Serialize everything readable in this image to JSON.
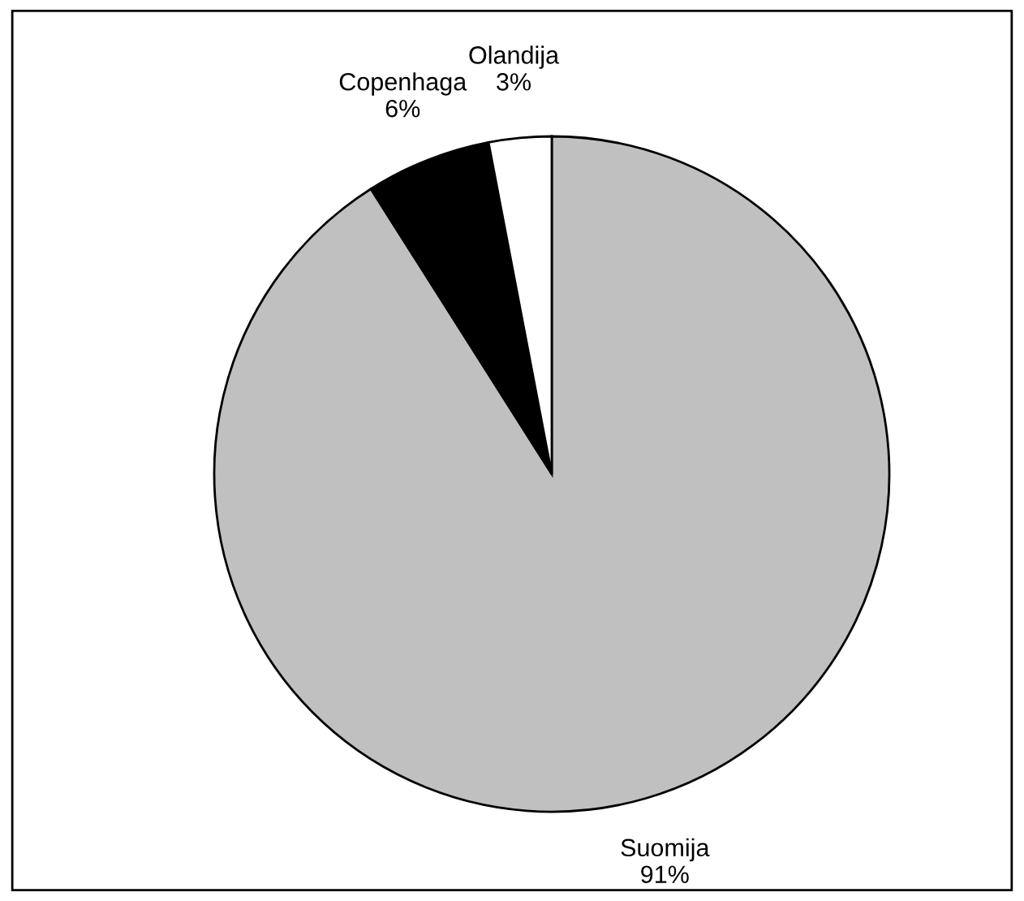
{
  "chart_data": {
    "type": "pie",
    "categories": [
      "Suomija",
      "Copenhaga",
      "Olandija"
    ],
    "values": [
      91,
      6,
      3
    ],
    "value_labels": [
      "91%",
      "6%",
      "3%"
    ],
    "colors": [
      "#c0c0c0",
      "#000000",
      "#ffffff"
    ],
    "legend": false
  }
}
